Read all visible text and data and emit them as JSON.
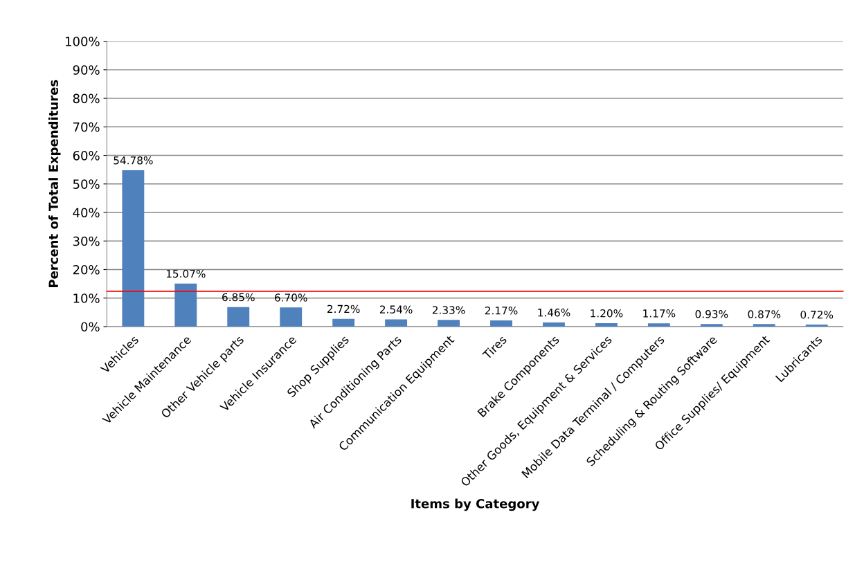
{
  "chart_data": {
    "type": "bar",
    "xlabel": "Items by Category",
    "ylabel": "Percent of Total Expenditures",
    "categories": [
      "Vehicles",
      "Vehicle Maintenance",
      "Other Vehicle parts",
      "Vehicle Insurance",
      "Shop Supplies",
      "Air Conditioning Parts",
      "Communication Equipment",
      "Tires",
      "Brake Components",
      "Other Goods, Equipment & Services",
      "Mobile Data Terminal / Computers",
      "Scheduling & Routing Software",
      "Office Supplies/ Equipment",
      "Lubricants"
    ],
    "values": [
      54.78,
      15.07,
      6.85,
      6.7,
      2.72,
      2.54,
      2.33,
      2.17,
      1.46,
      1.2,
      1.17,
      0.93,
      0.87,
      0.72
    ],
    "value_labels": [
      "54.78%",
      "15.07%",
      "6.85%",
      "6.70%",
      "2.72%",
      "2.54%",
      "2.33%",
      "2.17%",
      "1.46%",
      "1.20%",
      "1.17%",
      "0.93%",
      "0.87%",
      "0.72%"
    ],
    "color": "#4f81bd",
    "ylim": [
      0,
      100
    ],
    "yticks": [
      {
        "value": 0,
        "label": "0%"
      },
      {
        "value": 10,
        "label": "10%"
      },
      {
        "value": 20,
        "label": "20%"
      },
      {
        "value": 30,
        "label": "30%"
      },
      {
        "value": 40,
        "label": "40%"
      },
      {
        "value": 50,
        "label": "50%"
      },
      {
        "value": 60,
        "label": "60%"
      },
      {
        "value": 70,
        "label": "70%"
      },
      {
        "value": 80,
        "label": "80%"
      },
      {
        "value": 90,
        "label": "90%"
      },
      {
        "value": 100,
        "label": "100%"
      }
    ],
    "grid": "y",
    "ref_lines": [
      {
        "axis": "y",
        "value": 12.4,
        "color": "#ff0000"
      }
    ]
  }
}
